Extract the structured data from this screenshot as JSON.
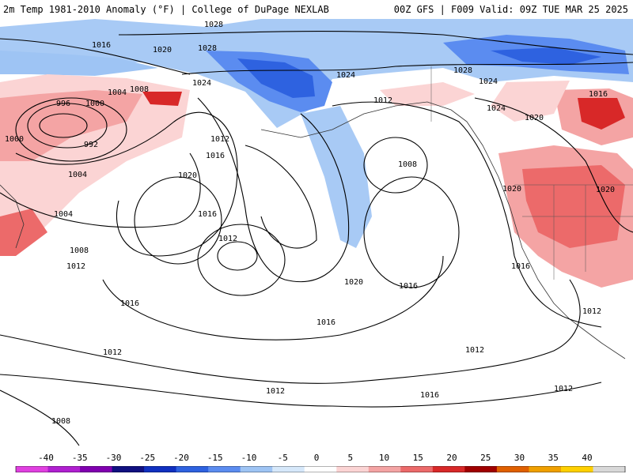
{
  "header": {
    "left_title": "2m Temp 1981-2010 Anomaly (°F) | College of DuPage NEXLAB",
    "right_title": "00Z GFS | F009 Valid: 09Z TUE MAR 25 2025"
  },
  "map": {
    "variable": "2m temperature anomaly (°F) with sea-level pressure isobars (mb)",
    "region": "North Pacific / Western North America",
    "isobar_labels": [
      "1028",
      "1016",
      "1020",
      "1028",
      "1024",
      "1008",
      "1004",
      "1000",
      "996",
      "992",
      "1000",
      "1012",
      "1016",
      "1020",
      "1016",
      "1012",
      "1004",
      "1004",
      "1008",
      "1012",
      "1016",
      "1024",
      "1012",
      "1008",
      "1028",
      "1024",
      "1024",
      "1016",
      "1020",
      "1020",
      "1020",
      "1016",
      "1020",
      "1016",
      "1012",
      "1016",
      "1012",
      "1012",
      "1016",
      "1012",
      "1012",
      "1008"
    ]
  },
  "colorbar": {
    "ticks": [
      "-40",
      "-35",
      "-30",
      "-25",
      "-20",
      "-15",
      "-10",
      "-5",
      "0",
      "5",
      "10",
      "15",
      "20",
      "25",
      "30",
      "35",
      "40"
    ],
    "colors": [
      "#e040e0",
      "#b020d0",
      "#8000b0",
      "#101080",
      "#1030c0",
      "#2e62e0",
      "#5b8cf0",
      "#9ec4f4",
      "#d6e8fa",
      "#ffffff",
      "#fbd4d4",
      "#f4a4a4",
      "#ec6a6a",
      "#d82828",
      "#a00000",
      "#e06000",
      "#f0a000",
      "#ffd000",
      "#d8d8d8"
    ]
  }
}
